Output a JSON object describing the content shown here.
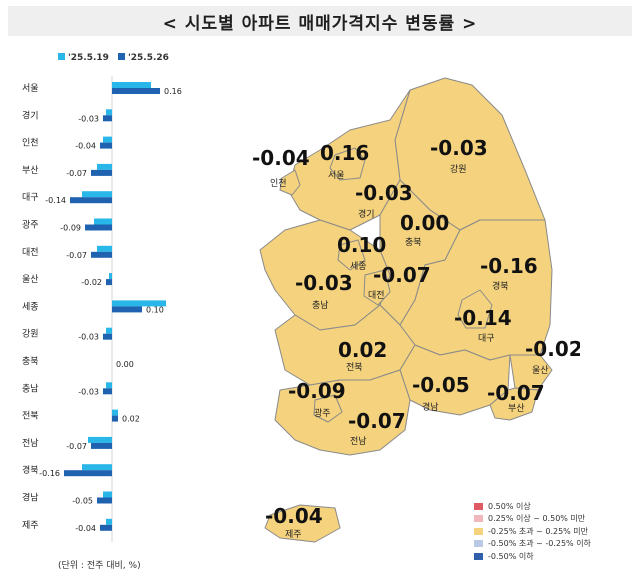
{
  "title": "< 시도별 아파트 매매가격지수 변동률 >",
  "unit_note": "(단위 : 전주 대비, %)",
  "chart_data": {
    "type": "bar",
    "orientation": "horizontal",
    "categories": [
      "서울",
      "경기",
      "인천",
      "부산",
      "대구",
      "광주",
      "대전",
      "울산",
      "세종",
      "강원",
      "충북",
      "충남",
      "전북",
      "전남",
      "경북",
      "경남",
      "제주"
    ],
    "series": [
      {
        "name": "'25.5.19",
        "color": "#29b6e8",
        "values": [
          0.13,
          -0.02,
          -0.03,
          -0.05,
          -0.1,
          -0.06,
          -0.05,
          -0.01,
          0.18,
          -0.02,
          0.0,
          -0.02,
          0.02,
          -0.08,
          -0.1,
          -0.03,
          -0.02
        ]
      },
      {
        "name": "'25.5.26",
        "color": "#1f63b0",
        "values": [
          0.16,
          -0.03,
          -0.04,
          -0.07,
          -0.14,
          -0.09,
          -0.07,
          -0.02,
          0.1,
          -0.03,
          0.0,
          -0.03,
          0.02,
          -0.07,
          -0.16,
          -0.05,
          -0.04
        ]
      }
    ],
    "value_labels": [
      "0.16",
      "-0.03",
      "-0.04",
      "-0.07",
      "-0.14",
      "-0.09",
      "-0.07",
      "-0.02",
      "0.10",
      "-0.03",
      "0.00",
      "-0.03",
      "0.02",
      "-0.07",
      "-0.16",
      "-0.05",
      "-0.04"
    ],
    "legend_position": "top"
  },
  "map": {
    "regions": [
      {
        "key": "incheon",
        "name": "인천",
        "value": "-0.04"
      },
      {
        "key": "seoul",
        "name": "서울",
        "value": "0.16"
      },
      {
        "key": "gangwon",
        "name": "강원",
        "value": "-0.03"
      },
      {
        "key": "gyeonggi",
        "name": "경기",
        "value": "-0.03"
      },
      {
        "key": "chungbuk",
        "name": "충북",
        "value": "0.00"
      },
      {
        "key": "sejong",
        "name": "세종",
        "value": "0.10"
      },
      {
        "key": "daejeon",
        "name": "대전",
        "value": "-0.07"
      },
      {
        "key": "gyeongbuk",
        "name": "경북",
        "value": "-0.16"
      },
      {
        "key": "chungnam",
        "name": "충남",
        "value": "-0.03"
      },
      {
        "key": "daegu",
        "name": "대구",
        "value": "-0.14"
      },
      {
        "key": "ulsan",
        "name": "울산",
        "value": "-0.02"
      },
      {
        "key": "jeonbuk",
        "name": "전북",
        "value": "0.02"
      },
      {
        "key": "gwangju",
        "name": "광주",
        "value": "-0.09"
      },
      {
        "key": "gyeongnam",
        "name": "경남",
        "value": "-0.05"
      },
      {
        "key": "busan",
        "name": "부산",
        "value": "-0.07"
      },
      {
        "key": "jeonnam",
        "name": "전남",
        "value": "-0.07"
      },
      {
        "key": "jeju",
        "name": "제주",
        "value": "-0.04"
      }
    ],
    "fill_color": "#f4d27e",
    "border_color": "#8a8a8a"
  },
  "legend": [
    {
      "label": "0.50% 이상",
      "color": "#e05a64"
    },
    {
      "label": "0.25% 이상 ~ 0.50% 미만",
      "color": "#f0b7bc"
    },
    {
      "label": "-0.25% 초과 ~ 0.25% 미만",
      "color": "#f4d27e"
    },
    {
      "label": "-0.50% 초과 ~ -0.25% 이하",
      "color": "#b9c9e6"
    },
    {
      "label": "-0.50% 이하",
      "color": "#2f5fa8"
    }
  ]
}
